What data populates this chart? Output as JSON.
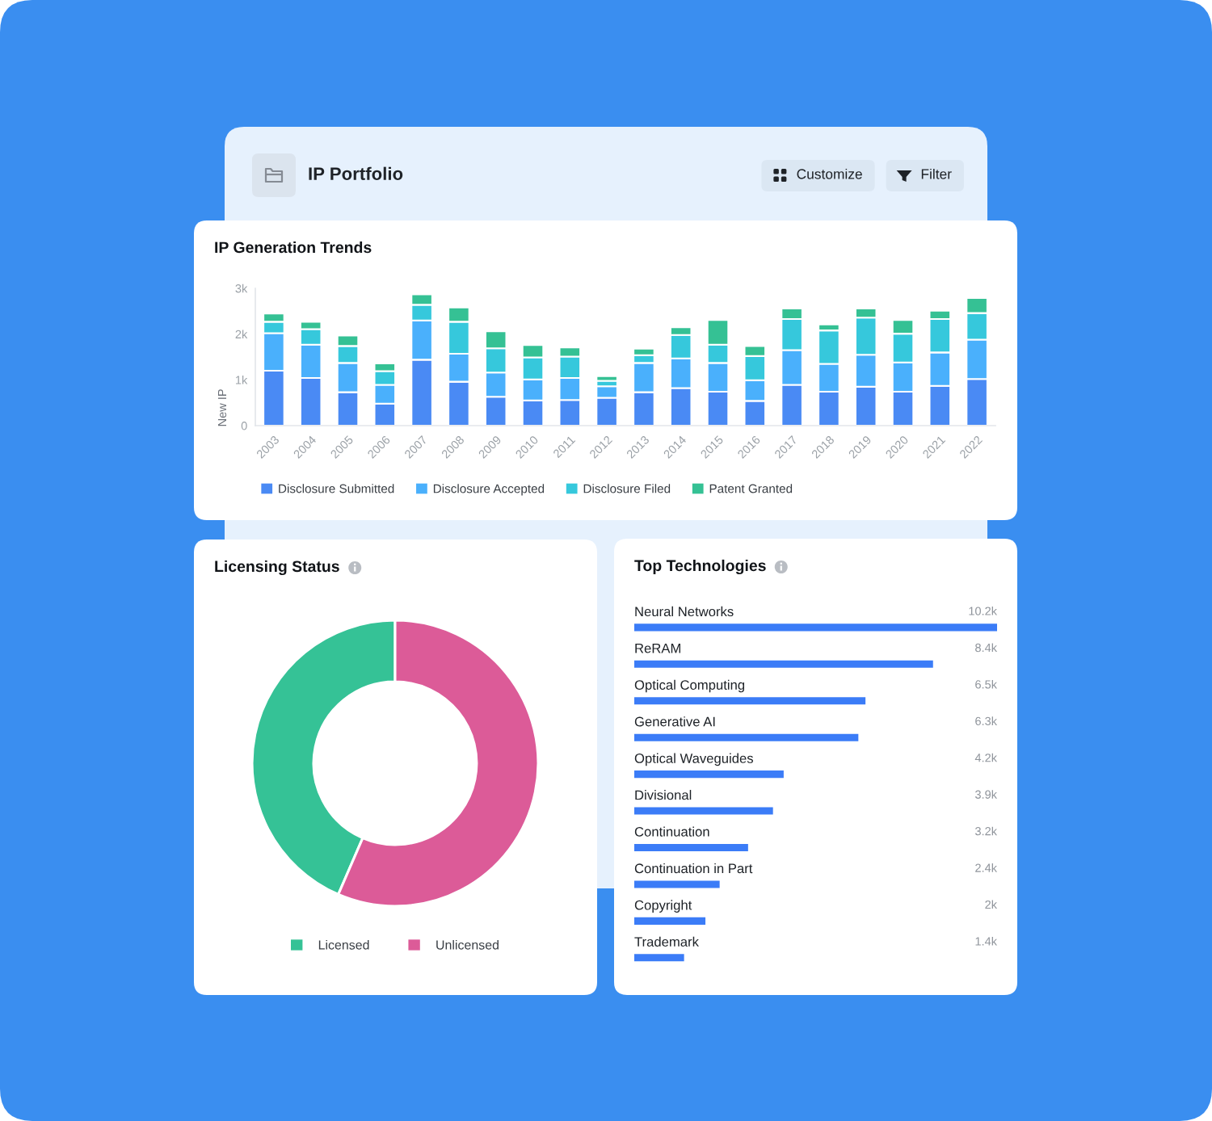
{
  "chart_data": [
    {
      "type": "other",
      "title": "IP Portfolio",
      "annotations": [
        "Customize",
        "Filter"
      ]
    },
    {
      "type": "bar",
      "title": "IP Generation Trends",
      "ylabel": "New IP",
      "stacked": true,
      "legend": "bottom",
      "categories": [
        "2003",
        "2004",
        "2005",
        "2006",
        "2007",
        "2008",
        "2009",
        "2010",
        "2011",
        "2012",
        "2013",
        "2014",
        "2015",
        "2016",
        "2017",
        "2018",
        "2019",
        "2020",
        "2021",
        "2022"
      ],
      "series": [
        {
          "name": "Disclosure Submitted",
          "color": "#4a8af4",
          "values": [
            1200,
            1040,
            730,
            480,
            1440,
            960,
            630,
            550,
            560,
            610,
            730,
            820,
            740,
            540,
            890,
            740,
            850,
            740,
            870,
            1020
          ]
        },
        {
          "name": "Disclosure Accepted",
          "color": "#4ab0fc",
          "values": [
            820,
            730,
            640,
            410,
            860,
            610,
            530,
            460,
            480,
            250,
            640,
            650,
            630,
            450,
            760,
            610,
            700,
            640,
            730,
            860
          ]
        },
        {
          "name": "Disclosure Filed",
          "color": "#36c8dc",
          "values": [
            250,
            340,
            370,
            300,
            340,
            700,
            530,
            480,
            470,
            120,
            170,
            510,
            400,
            530,
            680,
            730,
            810,
            630,
            730,
            580
          ]
        },
        {
          "name": "Patent Granted",
          "color": "#35c194",
          "values": [
            180,
            160,
            230,
            170,
            230,
            310,
            370,
            270,
            200,
            100,
            140,
            170,
            540,
            220,
            230,
            130,
            200,
            300,
            180,
            330
          ]
        }
      ],
      "ylim": [
        0,
        3000
      ],
      "yticks": [
        0,
        {
          "value": 1000,
          "label": "1k"
        },
        {
          "value": 2000,
          "label": "2k"
        },
        {
          "value": 3000,
          "label": "3k"
        }
      ]
    },
    {
      "type": "donut",
      "title": "Licensing Status",
      "categories": [
        "Licensed",
        "Unlicensed"
      ],
      "values": [
        43.5,
        56.5
      ],
      "colors": [
        "#35c296",
        "#dc5b98"
      ],
      "legend": "bottom"
    },
    {
      "type": "bar",
      "orientation": "horizontal",
      "title": "Top Technologies",
      "tick_labels": "y",
      "color": "#3b7cf7",
      "categories": [
        "Neural Networks",
        "ReRAM",
        "Optical Computing",
        "Generative AI",
        "Optical Waveguides",
        "Divisional",
        "Continuation",
        "Continuation in Part",
        "Copyright",
        "Trademark"
      ],
      "values": [
        10200,
        8400,
        6500,
        6300,
        4200,
        3900,
        3200,
        2400,
        2000,
        1400
      ],
      "value_labels": [
        "10.2k",
        "8.4k",
        "6.5k",
        "6.3k",
        "4.2k",
        "3.9k",
        "3.2k",
        "2.4k",
        "2k",
        "1.4k"
      ]
    }
  ]
}
